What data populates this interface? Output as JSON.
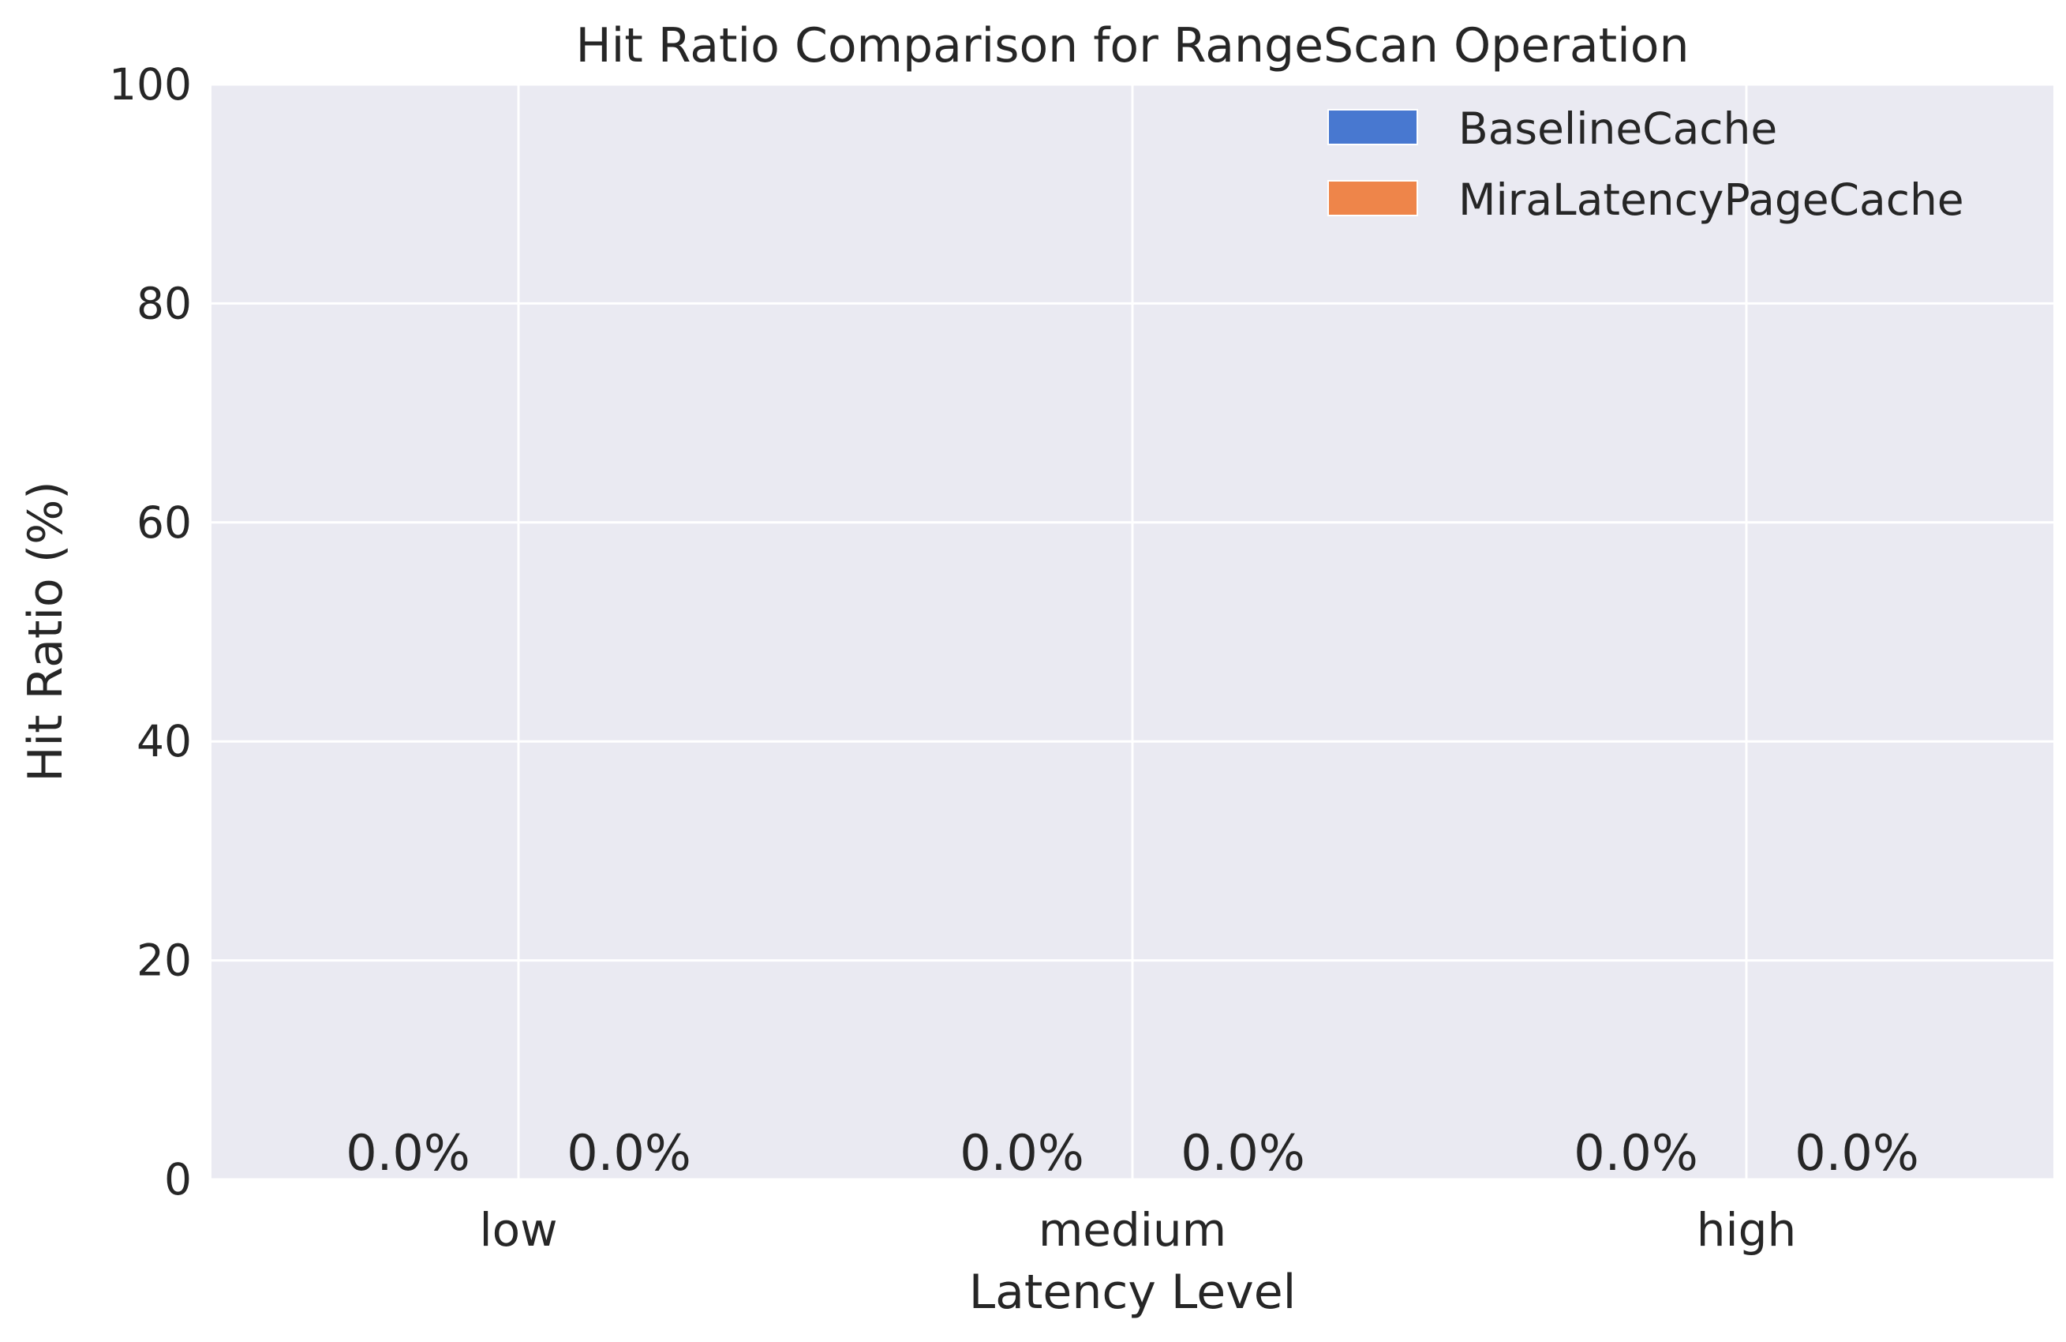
{
  "chart_data": {
    "type": "bar",
    "title": "Hit Ratio Comparison for RangeScan Operation",
    "xlabel": "Latency Level",
    "ylabel": "Hit Ratio (%)",
    "categories": [
      "low",
      "medium",
      "high"
    ],
    "series": [
      {
        "name": "BaselineCache",
        "values": [
          0.0,
          0.0,
          0.0
        ],
        "color": "#4878d0",
        "labels": [
          "0.0%",
          "0.0%",
          "0.0%"
        ]
      },
      {
        "name": "MiraLatencyPageCache",
        "values": [
          0.0,
          0.0,
          0.0
        ],
        "color": "#ee854a",
        "labels": [
          "0.0%",
          "0.0%",
          "0.0%"
        ]
      }
    ],
    "ylim": [
      0,
      100
    ],
    "yticks": [
      0,
      20,
      40,
      60,
      80,
      100
    ],
    "grid": true,
    "legend_position": "top-right",
    "background_color": "#eaeaf2",
    "grid_color": "#ffffff"
  }
}
